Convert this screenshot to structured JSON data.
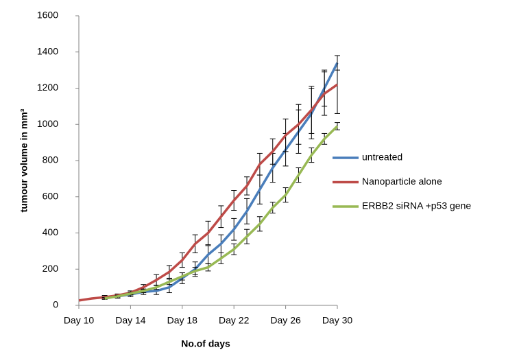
{
  "chart_data": {
    "type": "line",
    "y_label": "tumour volume in mm³",
    "x_label": "No.of days",
    "xlim": [
      10,
      30
    ],
    "xticks": [
      {
        "value": 10,
        "label": "Day 10"
      },
      {
        "value": 14,
        "label": "Day 14"
      },
      {
        "value": 18,
        "label": "Day 18"
      },
      {
        "value": 22,
        "label": "Day 22"
      },
      {
        "value": 26,
        "label": "Day 26"
      },
      {
        "value": 30,
        "label": "Day 30"
      }
    ],
    "ylim": [
      0,
      1600
    ],
    "yticks": [
      0,
      200,
      400,
      600,
      800,
      1000,
      1200,
      1400,
      1600
    ],
    "legend": "right",
    "series": [
      {
        "name": "untreated",
        "color": "#4a7ebb",
        "x": [
          12,
          13,
          14,
          15,
          16,
          17,
          18,
          19,
          20,
          21,
          22,
          23,
          24,
          25,
          26,
          27,
          28,
          29,
          30
        ],
        "values": [
          45,
          50,
          60,
          75,
          80,
          100,
          150,
          200,
          280,
          340,
          420,
          520,
          640,
          760,
          860,
          960,
          1060,
          1200,
          1340
        ],
        "errors": [
          10,
          10,
          12,
          15,
          20,
          30,
          30,
          40,
          50,
          50,
          60,
          70,
          80,
          80,
          90,
          120,
          140,
          100,
          40
        ]
      },
      {
        "name": "Nanoparticle alone",
        "color": "#be4b48",
        "x": [
          10,
          11,
          12,
          13,
          14,
          15,
          16,
          17,
          18,
          19,
          20,
          21,
          22,
          23,
          24,
          25,
          26,
          27,
          28,
          29,
          30
        ],
        "values": [
          27,
          38,
          45,
          55,
          70,
          100,
          140,
          185,
          250,
          340,
          400,
          490,
          580,
          660,
          780,
          850,
          940,
          1000,
          1080,
          1170,
          1220
        ],
        "errors": [
          0,
          0,
          5,
          8,
          10,
          15,
          30,
          35,
          40,
          50,
          65,
          60,
          55,
          50,
          60,
          70,
          90,
          110,
          130,
          120,
          160
        ]
      },
      {
        "name": "ERBB2 siRNA +p53 gene",
        "color": "#98b954",
        "x": [
          12,
          13,
          14,
          15,
          16,
          17,
          18,
          19,
          20,
          21,
          22,
          23,
          24,
          25,
          26,
          27,
          28,
          29,
          30
        ],
        "values": [
          38,
          50,
          65,
          80,
          100,
          130,
          160,
          190,
          210,
          260,
          310,
          380,
          450,
          540,
          610,
          720,
          830,
          920,
          990
        ],
        "errors": [
          5,
          5,
          8,
          10,
          12,
          15,
          20,
          20,
          20,
          30,
          30,
          40,
          40,
          30,
          40,
          40,
          40,
          30,
          20
        ]
      }
    ]
  }
}
